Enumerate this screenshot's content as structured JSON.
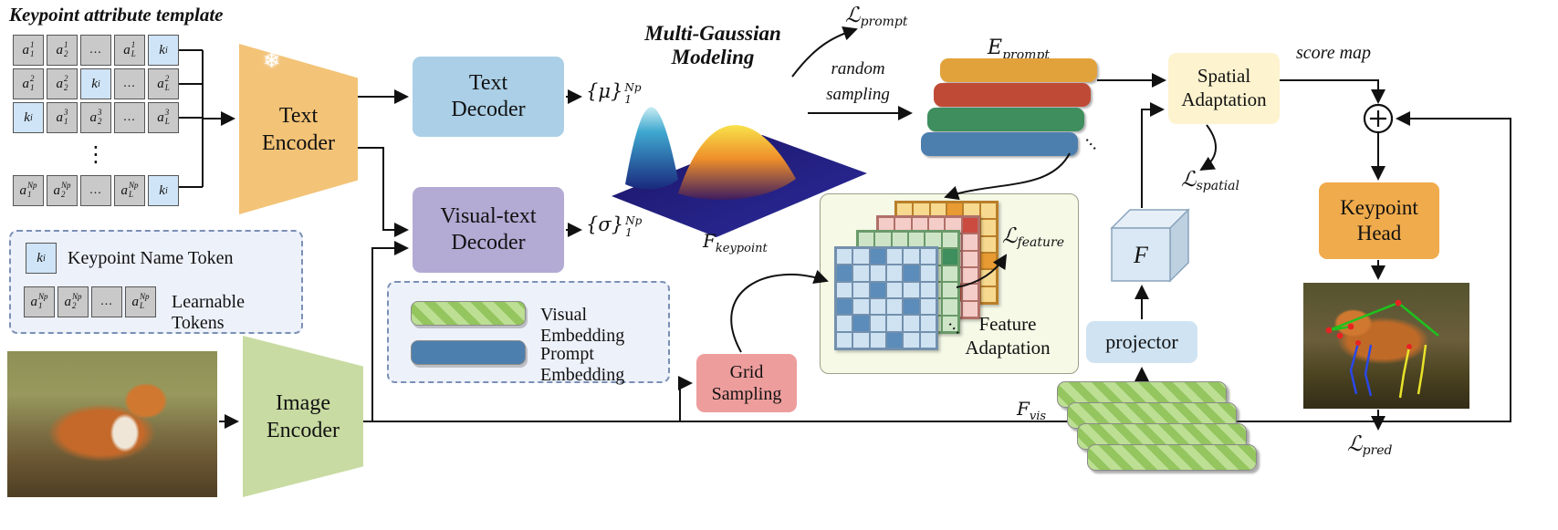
{
  "title": "Keypoint attribute template",
  "colors": {
    "token_gray": "#c9c9c9",
    "token_key_blue": "#cfe4f6",
    "text_encoder": "#f3c377",
    "text_decoder": "#aacfe6",
    "visual_text_decoder": "#b3abd4",
    "image_encoder": "#c8dba2",
    "grid_sampling": "#ee9d9d",
    "projector": "#cfe3f2",
    "spatial_adaptation": "#fdf3cf",
    "keypoint_head": "#f0ab4c",
    "prompt_bars": [
      "#e2a23b",
      "#bf4a35",
      "#3e8e5e",
      "#4d7fae"
    ],
    "visual_bar_light": "#bcdf93",
    "visual_bar_dark": "#94c55f",
    "feature_box": "#f5f9e6"
  },
  "token_grid": {
    "rows": [
      [
        {
          "b": "a",
          "sub": "1",
          "sup": "1"
        },
        {
          "b": "a",
          "sub": "2",
          "sup": "1"
        },
        {
          "b": "..."
        },
        {
          "b": "a",
          "sub": "L",
          "sup": "1"
        },
        {
          "b": "k",
          "sub": "i",
          "key": true
        }
      ],
      [
        {
          "b": "a",
          "sub": "1",
          "sup": "2"
        },
        {
          "b": "a",
          "sub": "2",
          "sup": "2"
        },
        {
          "b": "k",
          "sub": "i",
          "key": true
        },
        {
          "b": "..."
        },
        {
          "b": "a",
          "sub": "L",
          "sup": "2"
        }
      ],
      [
        {
          "b": "k",
          "sub": "i",
          "key": true
        },
        {
          "b": "a",
          "sub": "1",
          "sup": "3"
        },
        {
          "b": "a",
          "sub": "2",
          "sup": "3"
        },
        {
          "b": "..."
        },
        {
          "b": "a",
          "sub": "L",
          "sup": "3"
        }
      ],
      [
        {
          "b": "a",
          "sub": "1",
          "sup": "Np"
        },
        {
          "b": "a",
          "sub": "2",
          "sup": "Np"
        },
        {
          "b": "..."
        },
        {
          "b": "a",
          "sub": "L",
          "sup": "Np"
        },
        {
          "b": "k",
          "sub": "i",
          "key": true
        }
      ]
    ],
    "vdots": "⋮"
  },
  "legend_tokens": {
    "key_cell": {
      "b": "k",
      "sub": "i"
    },
    "key_label": "Keypoint Name Token",
    "learnable_cells": [
      {
        "b": "a",
        "sub": "1",
        "sup": "Np"
      },
      {
        "b": "a",
        "sub": "2",
        "sup": "Np"
      },
      {
        "b": "..."
      },
      {
        "b": "a",
        "sub": "L",
        "sup": "Np"
      }
    ],
    "learnable_label": "Learnable Tokens"
  },
  "blocks": {
    "text_encoder": {
      "line1": "Text",
      "line2": "Encoder",
      "frozen": "❄"
    },
    "image_encoder": {
      "line1": "Image",
      "line2": "Encoder"
    },
    "text_decoder": {
      "line1": "Text",
      "line2": "Decoder"
    },
    "visual_text_decoder": {
      "line1": "Visual-text",
      "line2": "Decoder"
    },
    "spatial_adaptation": {
      "line1": "Spatial",
      "line2": "Adaptation"
    },
    "keypoint_head": {
      "line1": "Keypoint",
      "line2": "Head"
    },
    "grid_sampling": {
      "line1": "Grid",
      "line2": "Sampling"
    },
    "projector": {
      "label": "projector"
    },
    "feature_adaptation": {
      "line1": "Feature",
      "line2": "Adaptation"
    }
  },
  "math": {
    "mu": {
      "brace": "{μ}",
      "sup": "Np",
      "sub": "1"
    },
    "sigma": {
      "brace": "{σ}",
      "sup": "Np",
      "sub": "1"
    },
    "e_prompt": {
      "b": "E",
      "sub": "prompt"
    },
    "f_keypoint": {
      "b": "F",
      "sub": "keypoint"
    },
    "f_vis": {
      "b": "F",
      "sub": "vis"
    },
    "f_cube": "F",
    "l_prompt": {
      "l": "ℒ",
      "sub": "prompt"
    },
    "l_spatial": {
      "l": "ℒ",
      "sub": "spatial"
    },
    "l_feature": {
      "l": "ℒ",
      "sub": "feature"
    },
    "l_pred": {
      "l": "ℒ",
      "sub": "pred"
    }
  },
  "annotations": {
    "multi_gaussian": {
      "line1": "Multi-Gaussian",
      "line2": "Modeling"
    },
    "random_sampling": {
      "line1": "random",
      "line2": "sampling"
    },
    "score_map": "score map"
  },
  "legend_embeddings": {
    "visual": "Visual Embedding",
    "prompt": "Prompt Embedding"
  },
  "feature_grids": [
    {
      "name": "yellow",
      "base": "#f7d98f",
      "accent": "#e89b32",
      "border": "#b97f2a",
      "dark": [
        [
          0,
          3
        ],
        [
          1,
          0
        ],
        [
          2,
          2
        ],
        [
          3,
          5
        ],
        [
          4,
          1
        ],
        [
          5,
          3
        ]
      ]
    },
    {
      "name": "pink",
      "base": "#f5cdc8",
      "accent": "#cb4b40",
      "border": "#b07068",
      "dark": [
        [
          0,
          5
        ],
        [
          2,
          1
        ],
        [
          4,
          4
        ],
        [
          5,
          0
        ]
      ]
    },
    {
      "name": "green",
      "base": "#cde5c6",
      "accent": "#3e8e5e",
      "border": "#6a9a6a",
      "dark": [
        [
          1,
          5
        ],
        [
          5,
          1
        ]
      ]
    },
    {
      "name": "blue",
      "base": "#cfe2f2",
      "accent": "#5b8cba",
      "border": "#7390ad",
      "dark": [
        [
          0,
          2
        ],
        [
          1,
          0
        ],
        [
          1,
          4
        ],
        [
          2,
          2
        ],
        [
          3,
          0
        ],
        [
          3,
          4
        ],
        [
          4,
          1
        ],
        [
          5,
          3
        ]
      ]
    }
  ],
  "misc": {
    "hdots": "⋯"
  }
}
